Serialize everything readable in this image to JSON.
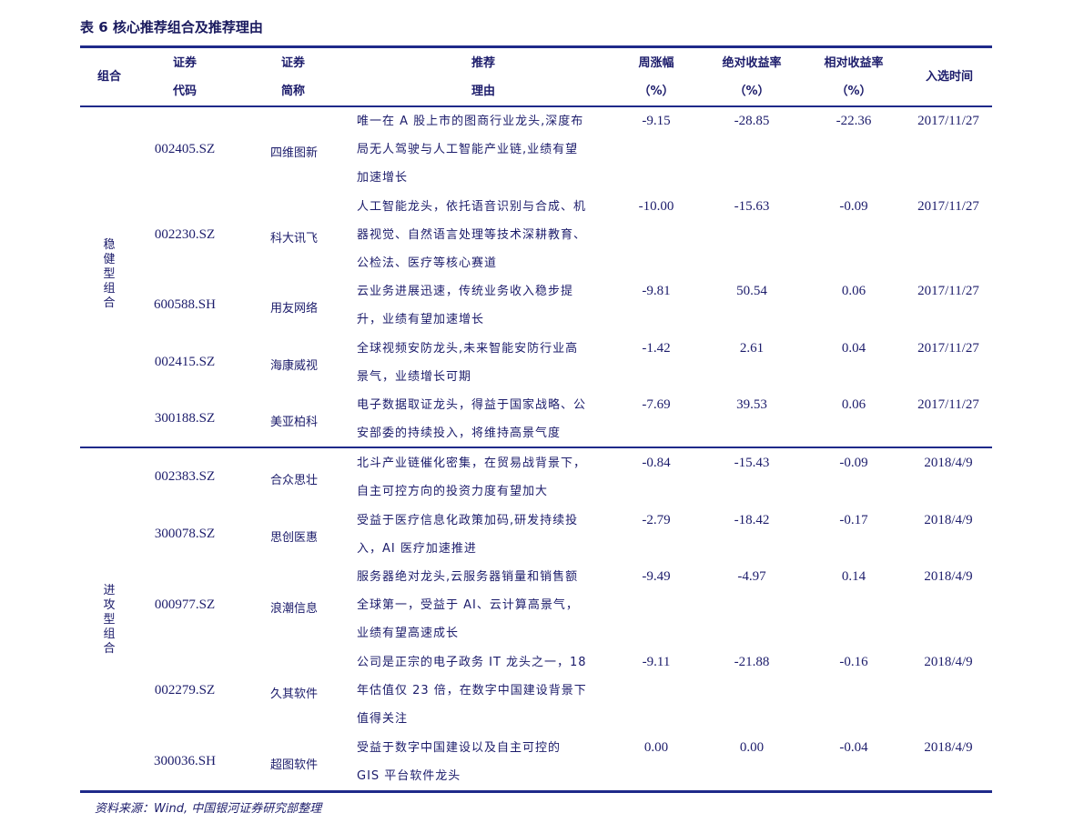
{
  "title": "表 6  核心推荐组合及推荐理由",
  "headers": {
    "group": "组合",
    "code1": "证券",
    "code2": "代码",
    "name1": "证券",
    "name2": "简称",
    "reason1": "推荐",
    "reason2": "理由",
    "weekly1": "周涨幅",
    "weekly2": "（%）",
    "abs1": "绝对收益率",
    "abs2": "（%）",
    "rel1": "相对收益率",
    "rel2": "（%）",
    "date": "入选时间"
  },
  "groups": [
    {
      "label": "稳健型组合",
      "rows": [
        {
          "code": "002405.SZ",
          "name": "四维图新",
          "reason": "唯一在 A 股上市的图商行业龙头,深度布\n局无人驾驶与人工智能产业链,业绩有望\n加速增长",
          "weekly": "-9.15",
          "abs": "-28.85",
          "rel": "-22.36",
          "date": "2017/11/27"
        },
        {
          "code": "002230.SZ",
          "name": "科大讯飞",
          "reason": "人工智能龙头，依托语音识别与合成、机\n器视觉、自然语言处理等技术深耕教育、\n公检法、医疗等核心赛道",
          "weekly": "-10.00",
          "abs": "-15.63",
          "rel": "-0.09",
          "date": "2017/11/27"
        },
        {
          "code": "600588.SH",
          "name": "用友网络",
          "reason": "云业务进展迅速，传统业务收入稳步提\n升，业绩有望加速增长",
          "weekly": "-9.81",
          "abs": "50.54",
          "rel": "0.06",
          "date": "2017/11/27"
        },
        {
          "code": "002415.SZ",
          "name": "海康威视",
          "reason": "全球视频安防龙头,未来智能安防行业高\n景气，业绩增长可期",
          "weekly": "-1.42",
          "abs": "2.61",
          "rel": "0.04",
          "date": "2017/11/27"
        },
        {
          "code": "300188.SZ",
          "name": "美亚柏科",
          "reason": "电子数据取证龙头，得益于国家战略、公\n安部委的持续投入，将维持高景气度",
          "weekly": "-7.69",
          "abs": "39.53",
          "rel": "0.06",
          "date": "2017/11/27"
        }
      ]
    },
    {
      "label": "进攻型组合",
      "rows": [
        {
          "code": "002383.SZ",
          "name": "合众思壮",
          "reason": "北斗产业链催化密集，在贸易战背景下，\n自主可控方向的投资力度有望加大",
          "weekly": "-0.84",
          "abs": "-15.43",
          "rel": "-0.09",
          "date": "2018/4/9"
        },
        {
          "code": "300078.SZ",
          "name": "思创医惠",
          "reason": "受益于医疗信息化政策加码,研发持续投\n入，AI 医疗加速推进",
          "weekly": "-2.79",
          "abs": "-18.42",
          "rel": "-0.17",
          "date": "2018/4/9"
        },
        {
          "code": "000977.SZ",
          "name": "浪潮信息",
          "reason": "服务器绝对龙头,云服务器销量和销售额\n全球第一，受益于 AI、云计算高景气，\n业绩有望高速成长",
          "weekly": "-9.49",
          "abs": "-4.97",
          "rel": "0.14",
          "date": "2018/4/9"
        },
        {
          "code": "002279.SZ",
          "name": "久其软件",
          "reason": "公司是正宗的电子政务 IT 龙头之一，18\n年估值仅 23 倍，在数字中国建设背景下\n值得关注",
          "weekly": "-9.11",
          "abs": "-21.88",
          "rel": "-0.16",
          "date": "2018/4/9"
        },
        {
          "code": "300036.SH",
          "name": "超图软件",
          "reason": "受益于数字中国建设以及自主可控的\nGIS 平台软件龙头",
          "weekly": "0.00",
          "abs": "0.00",
          "rel": "-0.04",
          "date": "2018/4/9"
        }
      ]
    }
  ],
  "source": "资料来源：Wind, 中国银河证券研究部整理"
}
